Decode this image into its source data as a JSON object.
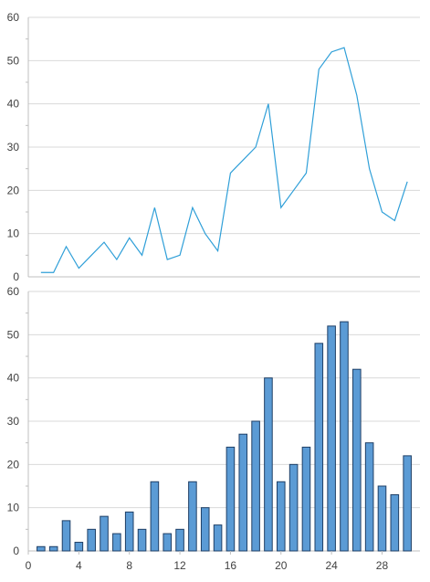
{
  "chart_data": [
    {
      "type": "line",
      "x": [
        1,
        2,
        3,
        4,
        5,
        6,
        7,
        8,
        9,
        10,
        11,
        12,
        13,
        14,
        15,
        16,
        17,
        18,
        19,
        20,
        21,
        22,
        23,
        24,
        25,
        26,
        27,
        28,
        29,
        30
      ],
      "series": [
        {
          "values": [
            1,
            1,
            7,
            2,
            5,
            8,
            4,
            9,
            5,
            16,
            4,
            5,
            16,
            10,
            6,
            24,
            27,
            30,
            40,
            16,
            20,
            24,
            48,
            52,
            53,
            42,
            25,
            15,
            13,
            22
          ]
        }
      ],
      "ylim": [
        0,
        60
      ],
      "yticks": [
        0,
        10,
        20,
        30,
        40,
        50,
        60
      ],
      "xlim": [
        0,
        31
      ],
      "grid": true,
      "color": "#2f9fd8"
    },
    {
      "type": "bar",
      "x": [
        1,
        2,
        3,
        4,
        5,
        6,
        7,
        8,
        9,
        10,
        11,
        12,
        13,
        14,
        15,
        16,
        17,
        18,
        19,
        20,
        21,
        22,
        23,
        24,
        25,
        26,
        27,
        28,
        29,
        30
      ],
      "series": [
        {
          "values": [
            1,
            1,
            7,
            2,
            5,
            8,
            4,
            9,
            5,
            16,
            4,
            5,
            16,
            10,
            6,
            24,
            27,
            30,
            40,
            16,
            20,
            24,
            48,
            52,
            53,
            42,
            25,
            15,
            13,
            22
          ]
        }
      ],
      "ylim": [
        0,
        60
      ],
      "yticks": [
        0,
        10,
        20,
        30,
        40,
        50,
        60
      ],
      "xlim": [
        0,
        31
      ],
      "xticks": [
        0,
        4,
        8,
        12,
        16,
        20,
        24,
        28
      ],
      "grid": true,
      "color": "#5b9bd5",
      "edge_color": "#1f3f66"
    }
  ]
}
